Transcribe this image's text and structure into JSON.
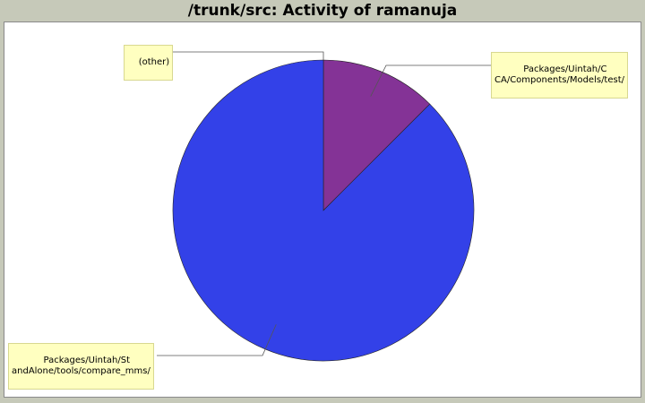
{
  "title": "/trunk/src: Activity of ramanuja",
  "chart_data": {
    "type": "pie",
    "slices": [
      {
        "label": "Packages/Uintah/CCA/Components/Models/test/",
        "label_lines": [
          "Packages/Uintah/C",
          "CA/Components/Models/test/"
        ],
        "value": 12.5,
        "color": "#843396"
      },
      {
        "label": "Packages/Uintah/StandAlone/tools/compare_mms/",
        "label_lines": [
          "Packages/Uintah/St",
          "andAlone/tools/compare_mms/"
        ],
        "value": 87.5,
        "color": "#3341e8"
      },
      {
        "label": "(other)",
        "label_lines": [
          "(other)"
        ],
        "value": 0,
        "color": "#808080"
      }
    ],
    "start_angle": "12 o'clock",
    "direction": "clockwise"
  }
}
